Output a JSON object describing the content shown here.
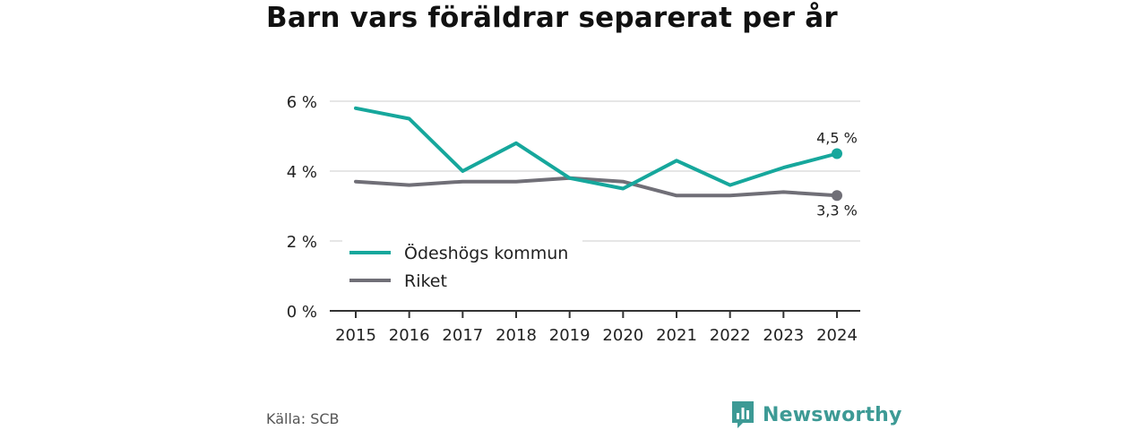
{
  "title": "Barn vars föräldrar separerat per år",
  "source": "Källa: SCB",
  "brand": {
    "name": "Newsworthy",
    "logo_icon": "bar-chart-speech-bubble-icon"
  },
  "colors": {
    "primary": "#16a79c",
    "secondary": "#706f77",
    "grid": "#dddddd",
    "axis": "#333333",
    "brand": "#3d9a95"
  },
  "chart_data": {
    "type": "line",
    "title": "Barn vars föräldrar separerat per år",
    "x": [
      "2015",
      "2016",
      "2017",
      "2018",
      "2019",
      "2020",
      "2021",
      "2022",
      "2023",
      "2024"
    ],
    "y_ticks": [
      0,
      2,
      4,
      6
    ],
    "y_tick_labels": [
      "0 %",
      "2 %",
      "4 %",
      "6 %"
    ],
    "ylim": [
      0,
      6
    ],
    "grid": true,
    "legend_position": "bottom-left",
    "series": [
      {
        "name": "Ödeshögs kommun",
        "color": "#16a79c",
        "values": [
          5.8,
          5.5,
          4.0,
          4.8,
          3.8,
          3.5,
          4.3,
          3.6,
          4.1,
          4.5
        ],
        "end_label": "4,5 %"
      },
      {
        "name": "Riket",
        "color": "#706f77",
        "values": [
          3.7,
          3.6,
          3.7,
          3.7,
          3.8,
          3.7,
          3.3,
          3.3,
          3.4,
          3.3
        ],
        "end_label": "3,3 %"
      }
    ]
  }
}
